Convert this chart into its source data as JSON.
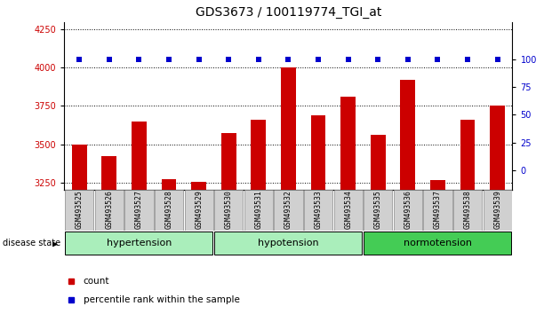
{
  "title": "GDS3673 / 100119774_TGI_at",
  "samples": [
    "GSM493525",
    "GSM493526",
    "GSM493527",
    "GSM493528",
    "GSM493529",
    "GSM493530",
    "GSM493531",
    "GSM493532",
    "GSM493533",
    "GSM493534",
    "GSM493535",
    "GSM493536",
    "GSM493537",
    "GSM493538",
    "GSM493539"
  ],
  "counts": [
    3500,
    3420,
    3650,
    3270,
    3255,
    3570,
    3660,
    4000,
    3690,
    3810,
    3560,
    3920,
    3265,
    3660,
    3750
  ],
  "ylim_left": [
    3200,
    4300
  ],
  "ylim_right": [
    -17.78,
    133.33
  ],
  "yticks_left": [
    3250,
    3500,
    3750,
    4000,
    4250
  ],
  "yticks_right": [
    0,
    25,
    50,
    75,
    100
  ],
  "groups": [
    {
      "label": "hypertension",
      "start": 0,
      "end": 4
    },
    {
      "label": "hypotension",
      "start": 5,
      "end": 9
    },
    {
      "label": "normotension",
      "start": 10,
      "end": 14
    }
  ],
  "bar_color": "#CC0000",
  "percentile_color": "#0000CC",
  "bar_width": 0.5,
  "bg_color": "#FFFFFF",
  "tick_label_color_left": "#CC0000",
  "tick_label_color_right": "#0000CC",
  "disease_state_label": "disease state",
  "legend_count_label": "count",
  "legend_percentile_label": "percentile rank within the sample",
  "title_fontsize": 10,
  "tick_fontsize": 7,
  "label_fontsize": 8,
  "group_light_color": "#AAEEBB",
  "group_dark_color": "#44CC55",
  "sample_box_color": "#D0D0D0"
}
